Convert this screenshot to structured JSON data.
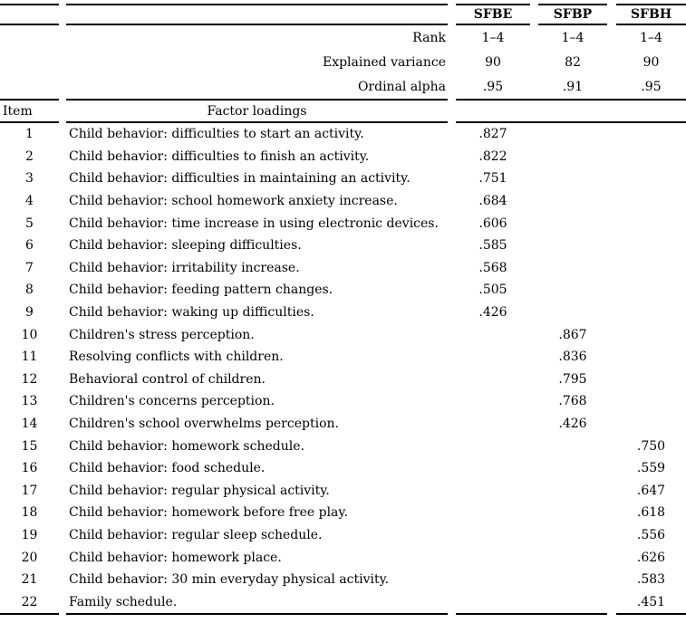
{
  "colors": {
    "text": "#000000",
    "background": "#ffffff",
    "rule": "#000000"
  },
  "table": {
    "columns": [
      "SFBE",
      "SFBP",
      "SFBH"
    ],
    "summary": {
      "rows": [
        {
          "label": "Rank",
          "values": [
            "1–4",
            "1–4",
            "1–4"
          ]
        },
        {
          "label": "Explained variance",
          "values": [
            "90",
            "82",
            "90"
          ]
        },
        {
          "label": "Ordinal alpha",
          "values": [
            ".95",
            ".91",
            ".95"
          ]
        }
      ]
    },
    "section": {
      "item_header": "Item",
      "loadings_header": "Factor loadings"
    },
    "items": [
      {
        "num": "1",
        "text": "Child behavior: difficulties to start an activity.",
        "factor": 0,
        "value": ".827"
      },
      {
        "num": "2",
        "text": "Child behavior: difficulties to finish an activity.",
        "factor": 0,
        "value": ".822"
      },
      {
        "num": "3",
        "text": "Child behavior: difficulties in maintaining an activity.",
        "factor": 0,
        "value": ".751"
      },
      {
        "num": "4",
        "text": "Child behavior: school homework anxiety increase.",
        "factor": 0,
        "value": ".684"
      },
      {
        "num": "5",
        "text": "Child behavior: time increase in using electronic devices.",
        "factor": 0,
        "value": ".606"
      },
      {
        "num": "6",
        "text": "Child behavior: sleeping difficulties.",
        "factor": 0,
        "value": ".585"
      },
      {
        "num": "7",
        "text": "Child behavior: irritability increase.",
        "factor": 0,
        "value": ".568"
      },
      {
        "num": "8",
        "text": "Child behavior: feeding pattern changes.",
        "factor": 0,
        "value": ".505"
      },
      {
        "num": "9",
        "text": "Child behavior: waking up difficulties.",
        "factor": 0,
        "value": ".426"
      },
      {
        "num": "10",
        "text": "Children's stress perception.",
        "factor": 1,
        "value": ".867"
      },
      {
        "num": "11",
        "text": "Resolving conflicts with children.",
        "factor": 1,
        "value": ".836"
      },
      {
        "num": "12",
        "text": "Behavioral control of children.",
        "factor": 1,
        "value": ".795"
      },
      {
        "num": "13",
        "text": "Children's concerns perception.",
        "factor": 1,
        "value": ".768"
      },
      {
        "num": "14",
        "text": "Children's school overwhelms perception.",
        "factor": 1,
        "value": ".426"
      },
      {
        "num": "15",
        "text": "Child behavior: homework schedule.",
        "factor": 2,
        "value": ".750"
      },
      {
        "num": "16",
        "text": "Child behavior: food schedule.",
        "factor": 2,
        "value": ".559"
      },
      {
        "num": "17",
        "text": "Child behavior: regular physical activity.",
        "factor": 2,
        "value": ".647"
      },
      {
        "num": "18",
        "text": "Child behavior: homework before free play.",
        "factor": 2,
        "value": ".618"
      },
      {
        "num": "19",
        "text": "Child behavior: regular sleep schedule.",
        "factor": 2,
        "value": ".556"
      },
      {
        "num": "20",
        "text": "Child behavior: homework place.",
        "factor": 2,
        "value": ".626"
      },
      {
        "num": "21",
        "text": "Child behavior: 30 min everyday physical activity.",
        "factor": 2,
        "value": ".583"
      },
      {
        "num": "22",
        "text": "Family schedule.",
        "factor": 2,
        "value": ".451"
      }
    ]
  }
}
